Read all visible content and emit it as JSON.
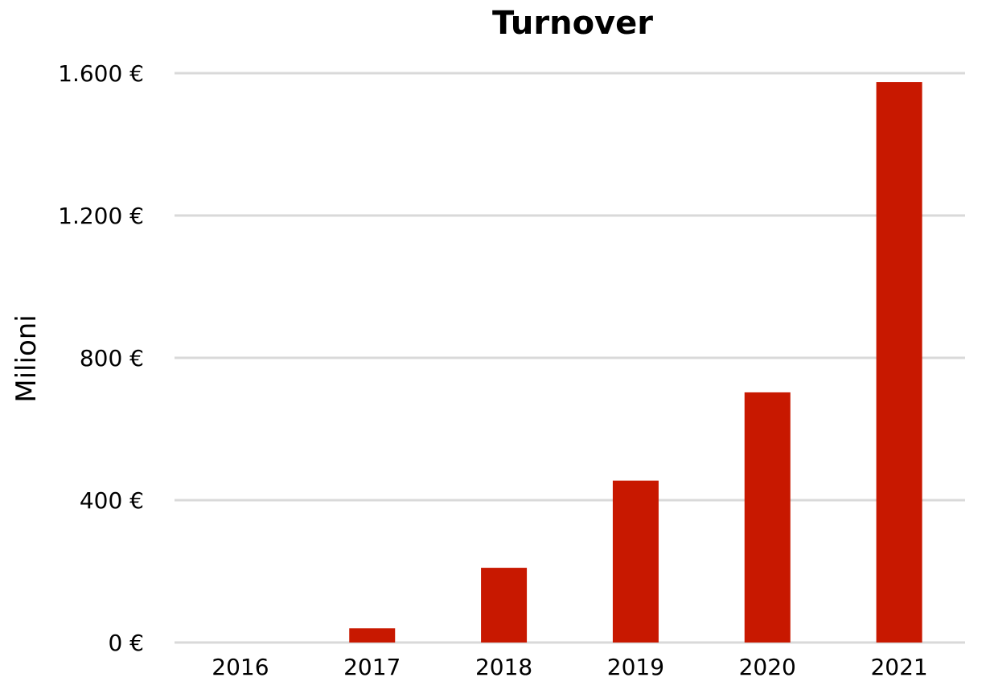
{
  "chart_data": {
    "type": "bar",
    "title": "Turnover",
    "xlabel": "",
    "ylabel": "Milioni",
    "categories": [
      "2016",
      "2017",
      "2018",
      "2019",
      "2020",
      "2021"
    ],
    "values": [
      0,
      40,
      210,
      455,
      703,
      1575
    ],
    "ylim": [
      0,
      1600
    ],
    "yticks": [
      0,
      400,
      800,
      1200,
      1600
    ],
    "ytick_labels": [
      "0 €",
      "400 €",
      "800 €",
      "1.200 €",
      "1.600 €"
    ],
    "grid": true,
    "legend": "none",
    "bar_color": "#c81800"
  }
}
